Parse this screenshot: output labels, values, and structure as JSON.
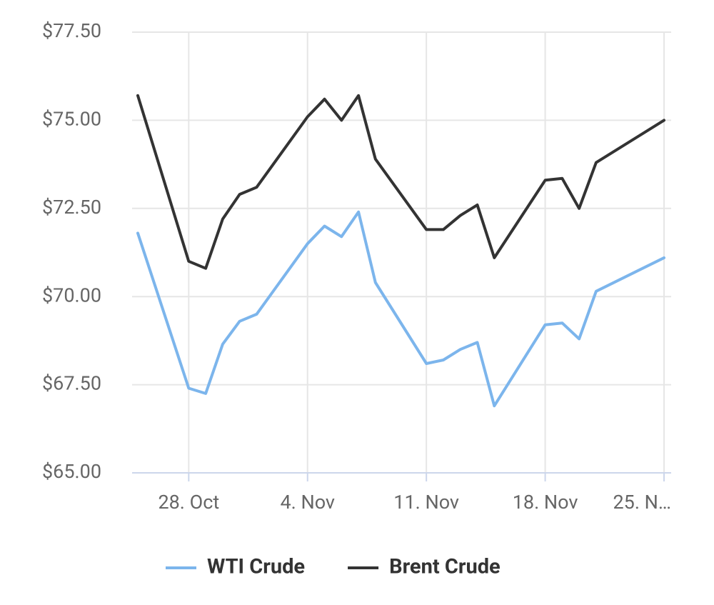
{
  "chart_data": {
    "type": "line",
    "x": [
      "25. Oct",
      "28. Oct",
      "29. Oct",
      "30. Oct",
      "31. Oct",
      "1. Nov",
      "4. Nov",
      "5. Nov",
      "6. Nov",
      "7. Nov",
      "8. Nov",
      "11. Nov",
      "12. Nov",
      "13. Nov",
      "14. Nov",
      "15. Nov",
      "18. Nov",
      "19. Nov",
      "20. Nov",
      "21. Nov",
      "25. Nov"
    ],
    "series": [
      {
        "name": "WTI Crude",
        "color": "#7cb5ec",
        "values": [
          71.8,
          67.4,
          67.25,
          68.65,
          69.3,
          69.5,
          71.5,
          72.0,
          71.7,
          72.4,
          70.4,
          68.1,
          68.2,
          68.5,
          68.7,
          66.9,
          69.2,
          69.25,
          68.8,
          70.15,
          71.1
        ]
      },
      {
        "name": "Brent Crude",
        "color": "#333333",
        "values": [
          75.7,
          71.0,
          70.8,
          72.2,
          72.9,
          73.1,
          75.1,
          75.6,
          75.0,
          75.7,
          73.9,
          71.9,
          71.9,
          72.3,
          72.6,
          71.1,
          73.3,
          73.35,
          72.5,
          73.8,
          75.0
        ]
      }
    ],
    "xlim": [
      "25. Oct",
      "25. Nov"
    ],
    "xticks": [
      "28. Oct",
      "4. Nov",
      "11. Nov",
      "18. Nov",
      {
        "value": "25. Nov",
        "label": "25. N…"
      }
    ],
    "ylim": [
      65,
      77.5
    ],
    "yticks": [
      {
        "value": 65,
        "label": "$65.00"
      },
      {
        "value": 67.5,
        "label": "$67.50"
      },
      {
        "value": 70,
        "label": "$70.00"
      },
      {
        "value": 72.5,
        "label": "$72.50"
      },
      {
        "value": 75,
        "label": "$75.00"
      },
      {
        "value": 77.5,
        "label": "$77.50"
      }
    ],
    "grid": true,
    "legend": "bottom"
  }
}
